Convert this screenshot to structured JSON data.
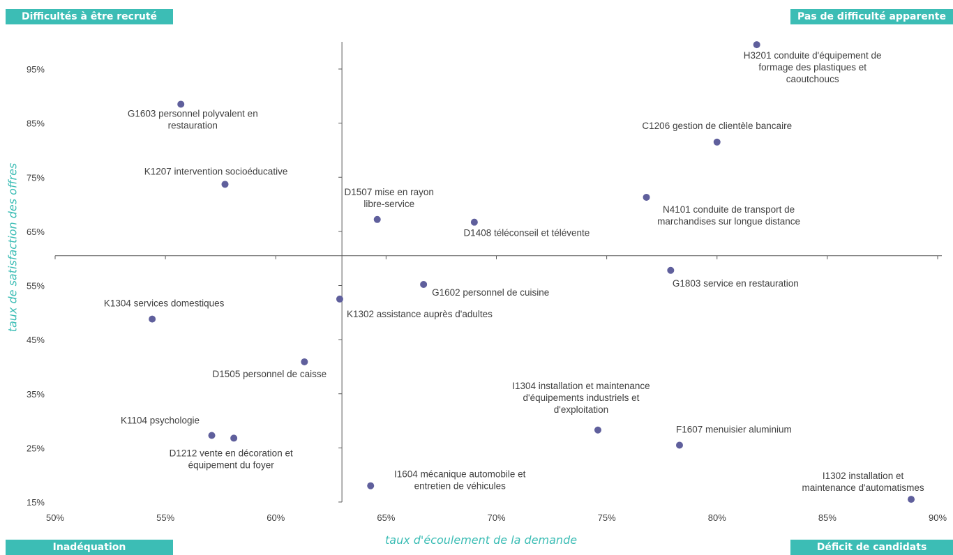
{
  "corners": {
    "top_left": "Difficultés à être recruté",
    "top_right": "Pas de difficulté apparente",
    "bottom_left": "Inadéquation",
    "bottom_right": "Déficit de candidats"
  },
  "colors": {
    "point": "#5f5f9c",
    "corner_bg": "#3cbdb5",
    "axis_title": "#3cbdb5",
    "axis_line": "#595959",
    "tick_text": "#404040",
    "label_text": "#404040"
  },
  "chart_data": {
    "type": "scatter",
    "xlabel": "taux d'écoulement de la demande",
    "ylabel": "taux de satisfaction des offres",
    "xlim": [
      50,
      90
    ],
    "ylim": [
      15,
      100
    ],
    "x_ticks": [
      "50%",
      "55%",
      "60%",
      "65%",
      "70%",
      "75%",
      "80%",
      "85%",
      "90%"
    ],
    "x_tick_values": [
      50,
      55,
      60,
      65,
      70,
      75,
      80,
      85,
      90
    ],
    "y_ticks": [
      "15%",
      "25%",
      "35%",
      "45%",
      "55%",
      "65%",
      "75%",
      "85%",
      "95%"
    ],
    "y_tick_values": [
      15,
      25,
      35,
      45,
      55,
      65,
      75,
      85,
      95
    ],
    "x_axis_crosses_y": 60.5,
    "y_axis_crosses_x": 63,
    "grid": false,
    "points": [
      {
        "x": 81.8,
        "y": 99.5,
        "label": [
          "H3201 conduite d'équipement de",
          "formage des plastiques et",
          "caoutchoucs"
        ],
        "anchor": "middle",
        "dx": 80,
        "dy": 20
      },
      {
        "x": 55.7,
        "y": 88.5,
        "label": [
          "G1603 personnel polyvalent en",
          "restauration"
        ],
        "anchor": "middle",
        "dx": 17,
        "dy": 18
      },
      {
        "x": 80.0,
        "y": 81.5,
        "label": [
          "C1206 gestion de clientèle bancaire"
        ],
        "anchor": "middle",
        "dx": 0,
        "dy": -19
      },
      {
        "x": 57.7,
        "y": 73.7,
        "label": [
          "K1207 intervention  socioéducative"
        ],
        "anchor": "middle",
        "dx": -13,
        "dy": -14
      },
      {
        "x": 76.8,
        "y": 71.3,
        "label": [
          "N4101 conduite de transport de",
          "marchandises sur longue distance"
        ],
        "anchor": "middle",
        "dx": 118,
        "dy": 22
      },
      {
        "x": 64.6,
        "y": 67.2,
        "label": [
          "D1507 mise en rayon",
          "libre-service"
        ],
        "anchor": "middle",
        "dx": 17,
        "dy": -35
      },
      {
        "x": 69.0,
        "y": 66.7,
        "label": [
          "D1408 téléconseil et télévente"
        ],
        "anchor": "middle",
        "dx": 75,
        "dy": 20
      },
      {
        "x": 77.9,
        "y": 57.8,
        "label": [
          "G1803 service en restauration"
        ],
        "anchor": "middle",
        "dx": 93,
        "dy": 23
      },
      {
        "x": 66.7,
        "y": 55.2,
        "label": [
          "G1602 personnel de cuisine"
        ],
        "anchor": "start",
        "dx": 12,
        "dy": 16
      },
      {
        "x": 62.9,
        "y": 52.5,
        "label": [
          "K1302 assistance auprès d'adultes"
        ],
        "anchor": "start",
        "dx": 10,
        "dy": 26
      },
      {
        "x": 54.4,
        "y": 48.8,
        "label": [
          "K1304 services domestiques"
        ],
        "anchor": "middle",
        "dx": 17,
        "dy": -18
      },
      {
        "x": 61.3,
        "y": 40.9,
        "label": [
          "D1505 personnel de caisse"
        ],
        "anchor": "middle",
        "dx": -50,
        "dy": 22
      },
      {
        "x": 74.6,
        "y": 28.3,
        "label": [
          "I1304 installation et maintenance",
          "d'équipements  industriels et",
          "d'exploitation"
        ],
        "anchor": "middle",
        "dx": -24,
        "dy": -59
      },
      {
        "x": 57.1,
        "y": 27.3,
        "label": [
          "K1104 psychologie"
        ],
        "anchor": "middle",
        "dx": -74,
        "dy": -17
      },
      {
        "x": 58.1,
        "y": 26.8,
        "label": [
          "D1212 vente en décoration et",
          "équipement du foyer"
        ],
        "anchor": "middle",
        "dx": -4,
        "dy": 26
      },
      {
        "x": 78.3,
        "y": 25.5,
        "label": [
          "F1607 menuisier aluminium"
        ],
        "anchor": "start",
        "dx": -5,
        "dy": -18
      },
      {
        "x": 64.3,
        "y": 18.0,
        "label": [
          "I1604 mécanique automobile et",
          "entretien de véhicules"
        ],
        "anchor": "middle",
        "dx": 128,
        "dy": -12
      },
      {
        "x": 88.8,
        "y": 15.5,
        "label": [
          "I1302 installation et",
          "maintenance d'automatismes"
        ],
        "anchor": "middle",
        "dx": -69,
        "dy": -29
      }
    ]
  }
}
